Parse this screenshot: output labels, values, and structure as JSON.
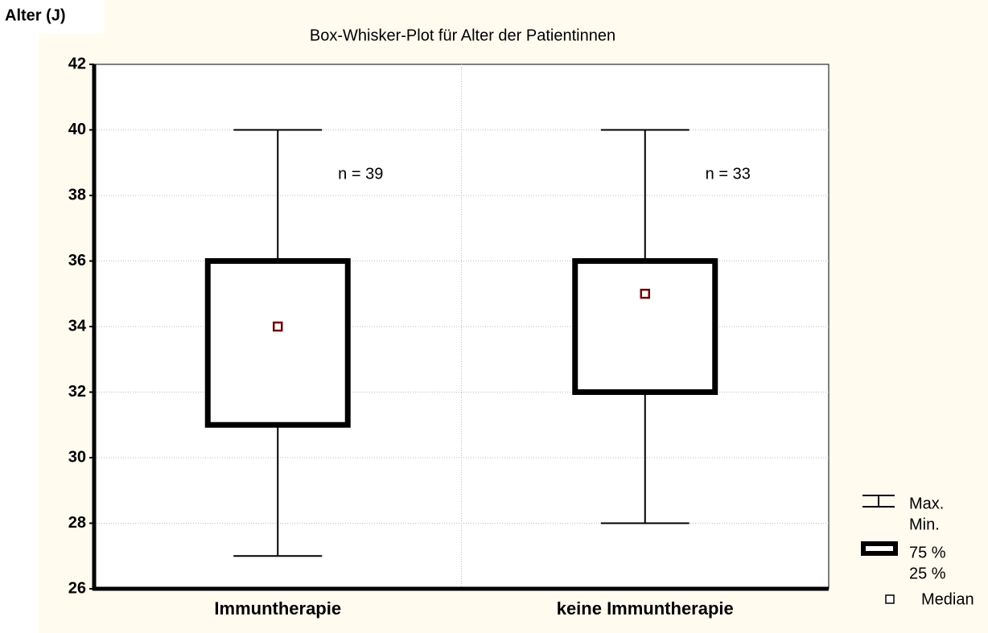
{
  "chart_data": {
    "type": "box",
    "title": "Box-Whisker-Plot für Alter der Patientinnen",
    "ylabel": "Alter (J)",
    "categories": [
      "Immuntherapie",
      "keine Immuntherapie"
    ],
    "min": [
      27,
      28
    ],
    "q1": [
      31,
      32
    ],
    "median": [
      34,
      35
    ],
    "q3": [
      36,
      36
    ],
    "max": [
      40,
      40
    ],
    "annotations": [
      "n = 39",
      "n = 33"
    ],
    "legend": {
      "max": "Max.",
      "min": "Min.",
      "q3": "75 %",
      "q1": "25 %",
      "median": "Median"
    },
    "median_color": "#800000",
    "ylim": [
      26,
      42
    ],
    "yticks": [
      26,
      28,
      30,
      32,
      34,
      36,
      38,
      40,
      42
    ],
    "grid": true
  }
}
